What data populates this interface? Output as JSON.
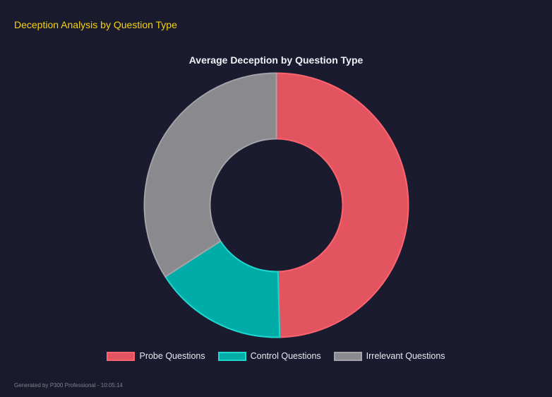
{
  "header": {
    "title": "Deception Analysis by Question Type"
  },
  "footer": {
    "text": "Generated by P300 Professional - 10:05:14"
  },
  "chart_data": {
    "type": "pie",
    "variant": "doughnut",
    "title": "Average Deception by Question Type",
    "categories": [
      "Probe Questions",
      "Control Questions",
      "Irrelevant Questions"
    ],
    "values": [
      49.6,
      16.3,
      34.1
    ],
    "colors": [
      "#e2545f",
      "#00aca7",
      "#8a898e"
    ],
    "border_colors": [
      "#ff6370",
      "#1ed8d0",
      "#a3a3a8"
    ],
    "legend": {
      "position": "bottom",
      "labels": [
        "Probe Questions",
        "Control Questions",
        "Irrelevant Questions"
      ]
    }
  }
}
